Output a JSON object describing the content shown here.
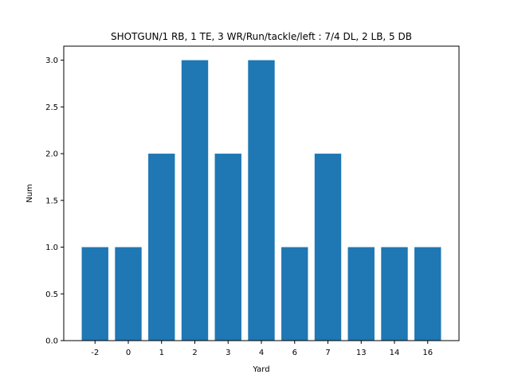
{
  "chart_data": {
    "type": "bar",
    "title": "SHOTGUN/1 RB, 1 TE, 3 WR/Run/tackle/left : 7/4 DL, 2 LB, 5 DB",
    "xlabel": "Yard",
    "ylabel": "Num",
    "categories": [
      "-2",
      "0",
      "1",
      "2",
      "3",
      "4",
      "6",
      "7",
      "13",
      "14",
      "16"
    ],
    "values": [
      1,
      1,
      2,
      3,
      2,
      3,
      1,
      2,
      1,
      1,
      1
    ],
    "ylim": [
      0,
      3.15
    ],
    "yticks": [
      "0.0",
      "0.5",
      "1.0",
      "1.5",
      "2.0",
      "2.5",
      "3.0"
    ],
    "bar_color": "#1f77b4",
    "grid": false,
    "legend": false
  }
}
